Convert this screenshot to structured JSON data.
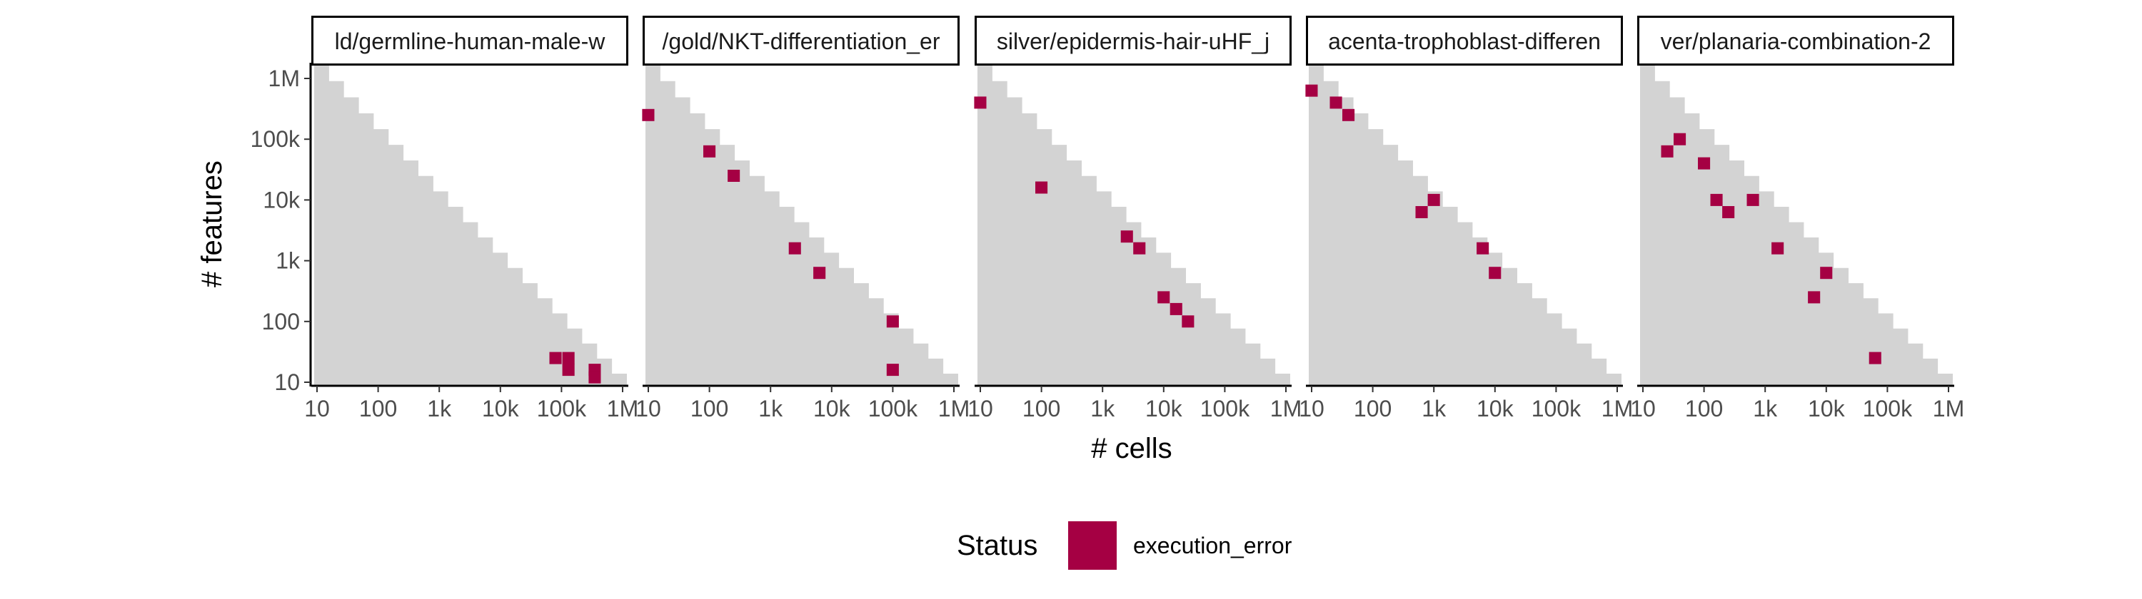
{
  "chart_data": {
    "type": "heatmap",
    "title": "",
    "xlabel": "# cells",
    "ylabel": "# features",
    "x_scale": "log10",
    "y_scale": "log10",
    "xlim": [
      10,
      1000000
    ],
    "ylim": [
      10,
      1000000
    ],
    "x_ticks": [
      10,
      100,
      1000,
      10000,
      100000,
      1000000
    ],
    "x_tick_labels": [
      "10",
      "100",
      "1k",
      "10k",
      "100k",
      "1M"
    ],
    "y_ticks": [
      10,
      100,
      1000,
      10000,
      100000,
      1000000
    ],
    "y_tick_labels": [
      "10",
      "100",
      "1k",
      "10k",
      "100k",
      "1M"
    ],
    "background_color": "#d3d3d3",
    "grid": false,
    "legend": {
      "title": "Status",
      "position": "bottom",
      "entries": [
        {
          "label": "execution_error",
          "color": "#a50043"
        }
      ]
    },
    "panels": [
      {
        "label": "ld/germline-human-male-w",
        "series": [
          {
            "name": "execution_error",
            "points": [
              [
                80000,
                25
              ],
              [
                130000,
                25
              ],
              [
                130000,
                16
              ],
              [
                350000,
                16
              ],
              [
                350000,
                12
              ]
            ]
          }
        ]
      },
      {
        "label": "/gold/NKT-differentiation_er",
        "series": [
          {
            "name": "execution_error",
            "points": [
              [
                10,
                250000
              ],
              [
                100,
                63000
              ],
              [
                250,
                25000
              ],
              [
                2500,
                1600
              ],
              [
                6300,
                630
              ],
              [
                100000,
                100
              ],
              [
                100000,
                16
              ]
            ]
          }
        ]
      },
      {
        "label": "silver/epidermis-hair-uHF_j",
        "series": [
          {
            "name": "execution_error",
            "points": [
              [
                10,
                400000
              ],
              [
                100,
                16000
              ],
              [
                2500,
                2500
              ],
              [
                4000,
                1600
              ],
              [
                10000,
                250
              ],
              [
                16000,
                160
              ],
              [
                25000,
                100
              ]
            ]
          }
        ]
      },
      {
        "label": "acenta-trophoblast-differen",
        "series": [
          {
            "name": "execution_error",
            "points": [
              [
                10,
                630000
              ],
              [
                25,
                400000
              ],
              [
                40,
                250000
              ],
              [
                630,
                6300
              ],
              [
                1000,
                10000
              ],
              [
                6300,
                1600
              ],
              [
                10000,
                630
              ]
            ]
          }
        ]
      },
      {
        "label": "ver/planaria-combination-2",
        "series": [
          {
            "name": "execution_error",
            "points": [
              [
                25,
                63000
              ],
              [
                40,
                100000
              ],
              [
                100,
                40000
              ],
              [
                160,
                10000
              ],
              [
                250,
                6300
              ],
              [
                630,
                10000
              ],
              [
                1600,
                1600
              ],
              [
                6300,
                250
              ],
              [
                10000,
                630
              ],
              [
                63000,
                25
              ]
            ]
          }
        ]
      }
    ]
  }
}
